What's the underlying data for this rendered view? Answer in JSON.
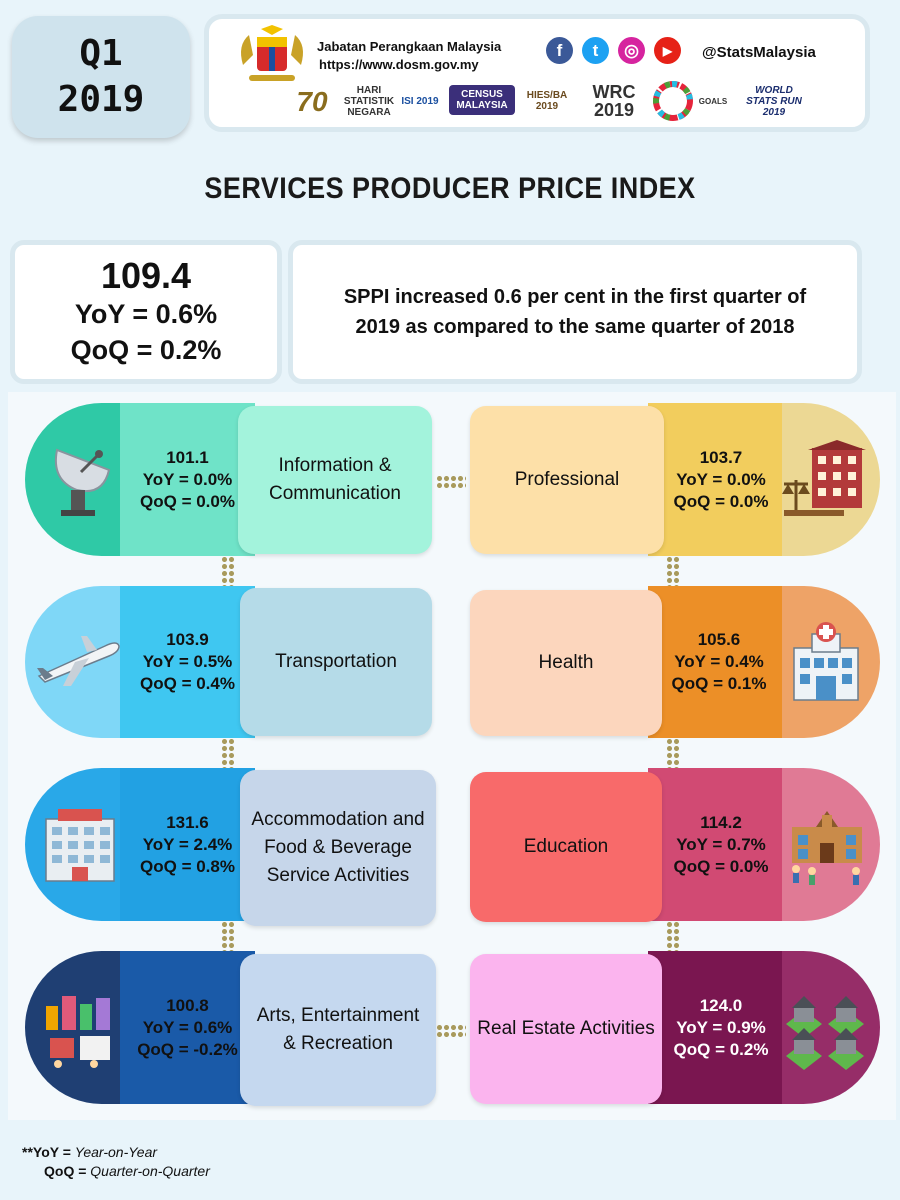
{
  "header": {
    "quarter": "Q1",
    "year": "2019",
    "department": "Jabatan Perangkaan Malaysia",
    "url": "https://www.dosm.gov.my",
    "social_handle": "@StatsMalaysia"
  },
  "title": "SERVICES PRODUCER PRICE INDEX",
  "summary": {
    "index": "109.4",
    "yoy": "YoY = 0.6%",
    "qoq": "QoQ = 0.2%",
    "description": "SPPI increased 0.6 per cent in the first quarter of 2019 as compared to the same quarter of 2018"
  },
  "sectors": [
    {
      "label": "Information & Communication",
      "index": "101.1",
      "yoy": "YoY = 0.0%",
      "qoq": "QoQ = 0.0%"
    },
    {
      "label": "Transportation",
      "index": "103.9",
      "yoy": "YoY = 0.5%",
      "qoq": "QoQ = 0.4%"
    },
    {
      "label": "Accommodation and  Food & Beverage Service Activities",
      "index": "131.6",
      "yoy": "YoY = 2.4%",
      "qoq": "QoQ = 0.8%"
    },
    {
      "label": "Arts, Entertainment & Recreation",
      "index": "100.8",
      "yoy": "YoY = 0.6%",
      "qoq": "QoQ = -0.2%"
    },
    {
      "label": "Professional",
      "index": "103.7",
      "yoy": "YoY = 0.0%",
      "qoq": "QoQ = 0.0%"
    },
    {
      "label": "Health",
      "index": "105.6",
      "yoy": "YoY = 0.4%",
      "qoq": "QoQ = 0.1%"
    },
    {
      "label": "Education",
      "index": "114.2",
      "yoy": "YoY = 0.7%",
      "qoq": "QoQ = 0.0%"
    },
    {
      "label": "Real Estate Activities",
      "index": "124.0",
      "yoy": "YoY = 0.9%",
      "qoq": "QoQ = 0.2%"
    }
  ],
  "footnote": {
    "yoy_abbr": "**YoY  =",
    "yoy_full": "Year-on-Year",
    "qoq_abbr": "QoQ =",
    "qoq_full": "Quarter-on-Quarter"
  },
  "logos": {
    "hari_statistik": "HARI STATISTIK NEGARA",
    "isi": "ISI 2019",
    "census": "CENSUS MALAYSIA",
    "hies": "HIES/BA 2019",
    "wrc": "WRC 2019",
    "sdg": "GOALS",
    "world_stats_run": "WORLD STATS RUN 2019",
    "seventy": "70"
  }
}
